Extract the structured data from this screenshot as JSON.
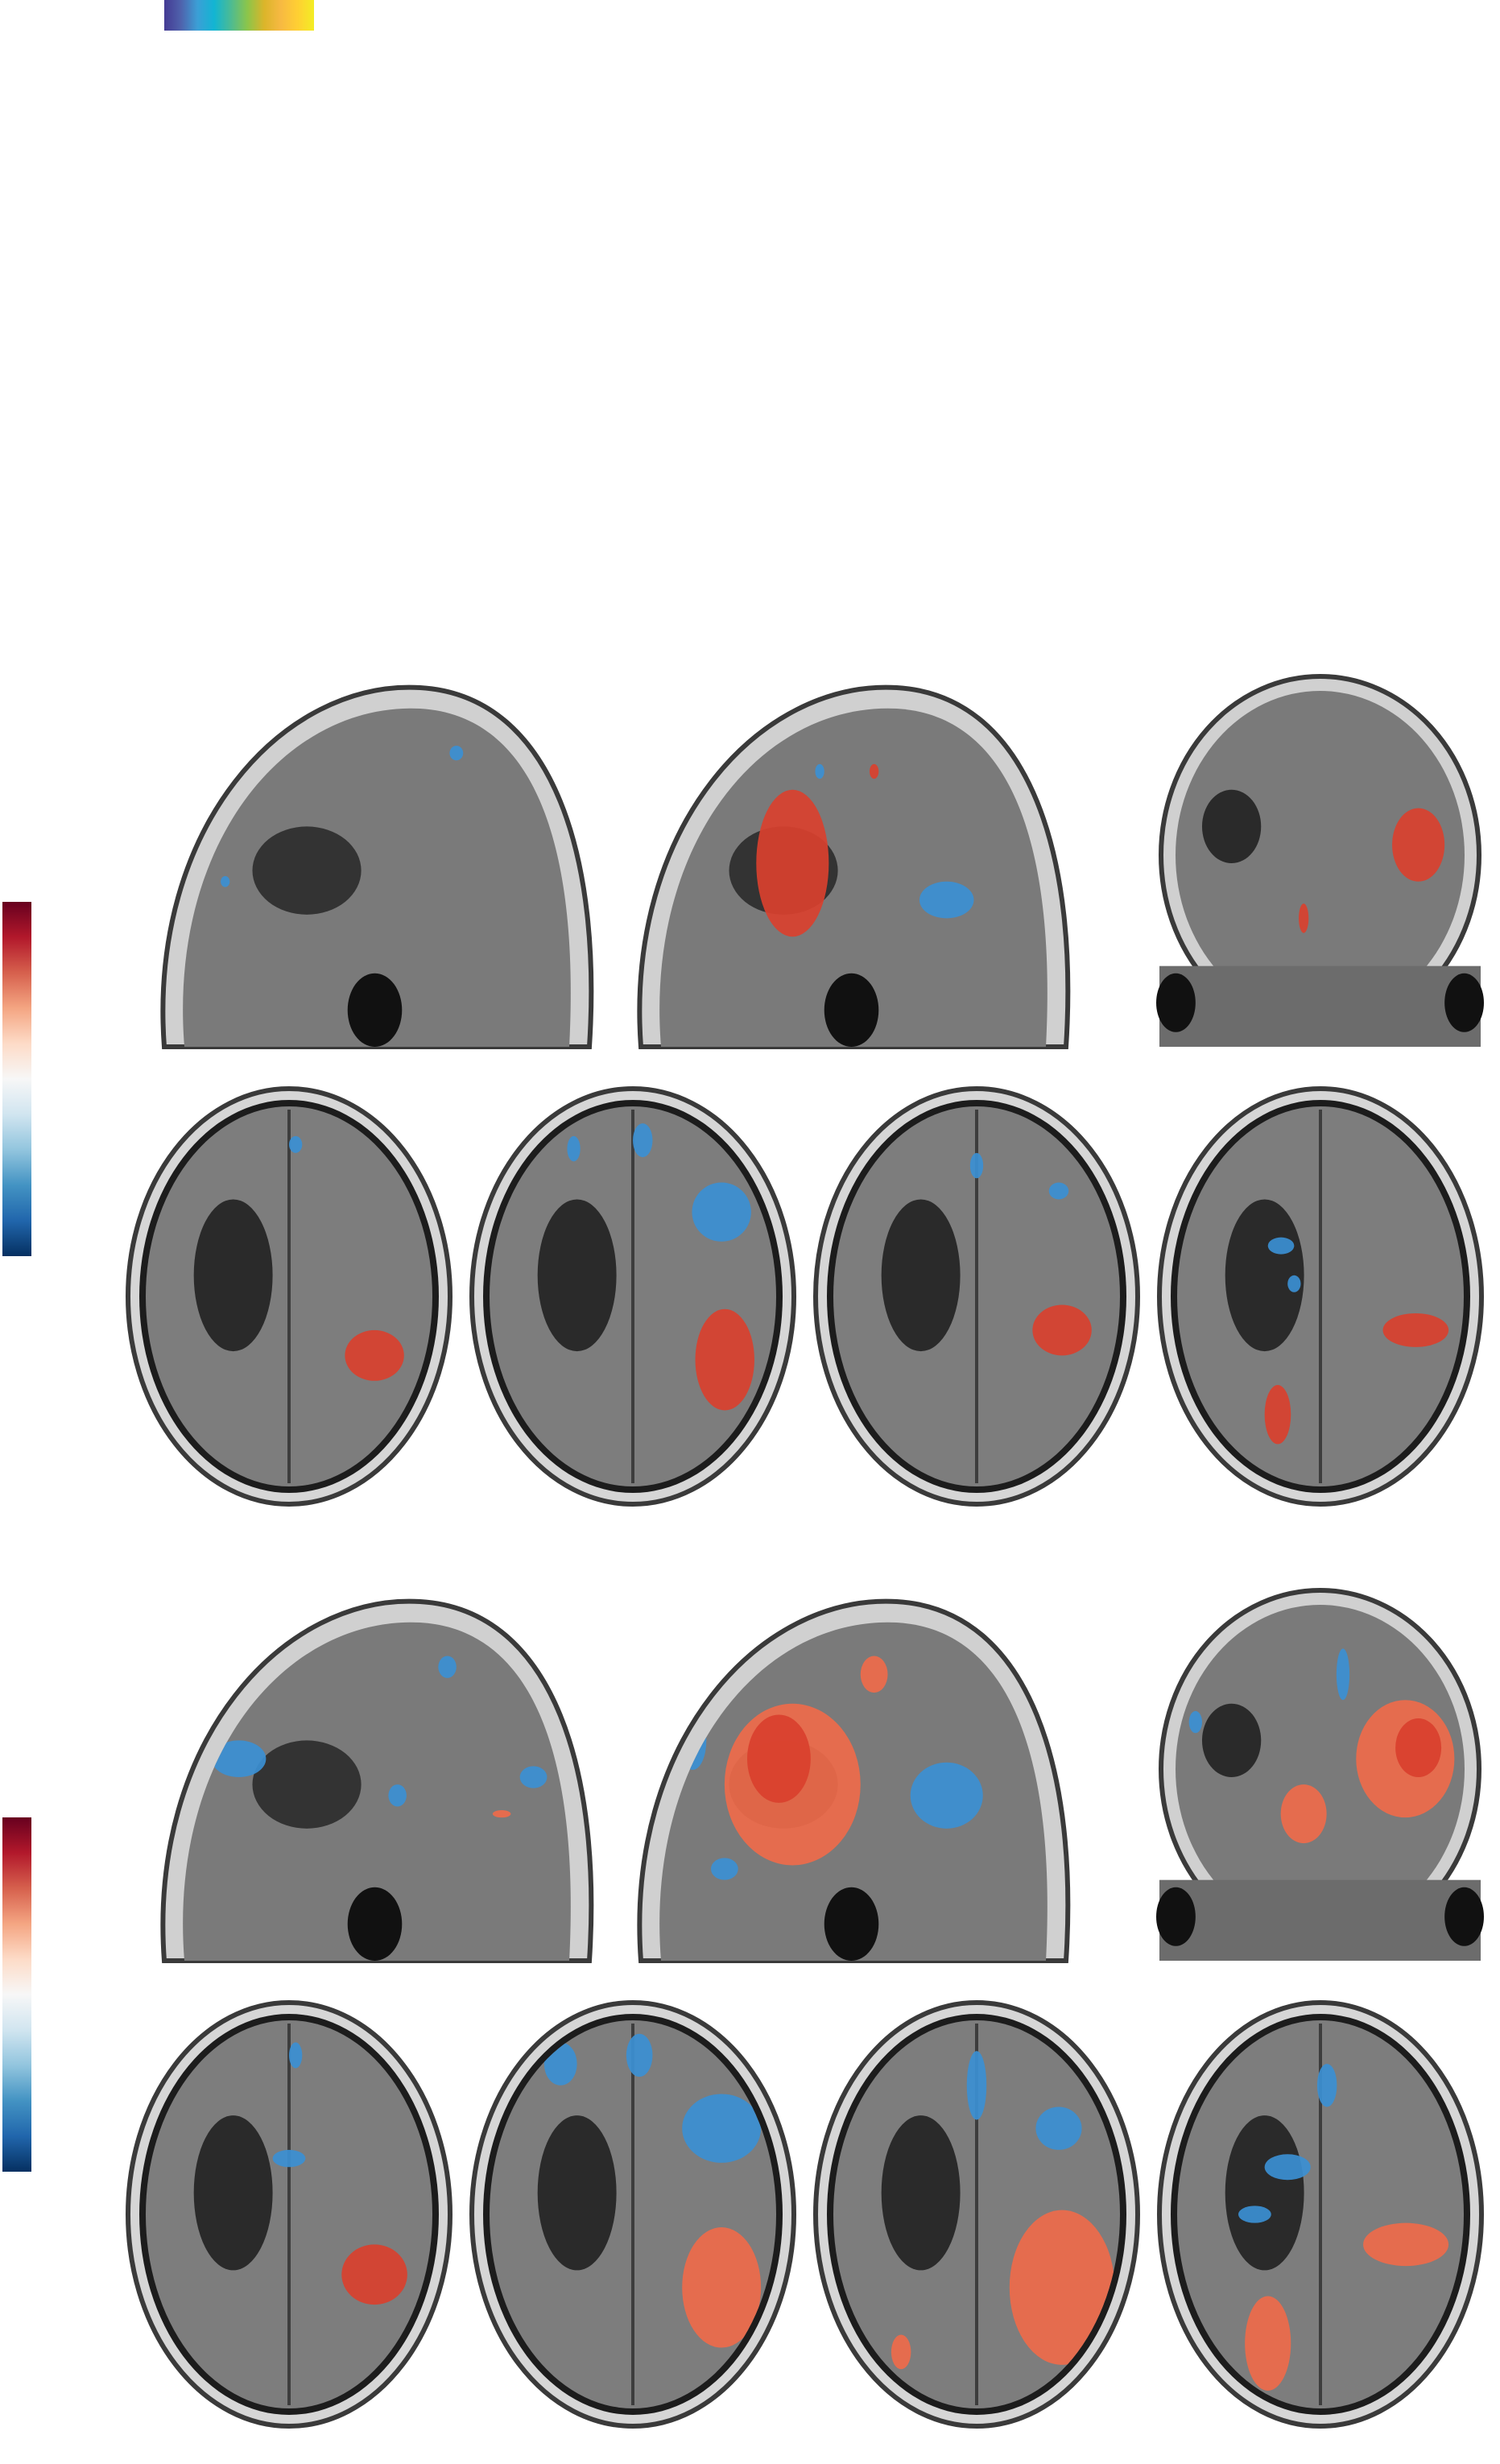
{
  "colors": {
    "sequential_colorbar": [
      "#443a93",
      "#4f62ac",
      "#3b9fd6",
      "#12b5d3",
      "#4cbb93",
      "#8cc54a",
      "#dbb52a",
      "#f7b942",
      "#ffcf33",
      "#f3ed24"
    ],
    "diverging_colorbar": [
      "#67001f",
      "#b2182b",
      "#d6604d",
      "#f4a582",
      "#fddbc7",
      "#f7f7f7",
      "#d1e5f0",
      "#92c5de",
      "#4393c3",
      "#2166ac",
      "#053061"
    ],
    "positive_overlay": "#d9402e",
    "positive_overlay_light": "#ee6a4a",
    "negative_overlay": "#3b8fd2"
  },
  "panel_groups": [
    {
      "views": [
        "sagittal",
        "sagittal",
        "coronal",
        "axial",
        "axial",
        "axial",
        "axial"
      ]
    },
    {
      "views": [
        "sagittal",
        "sagittal",
        "coronal",
        "axial",
        "axial",
        "axial",
        "axial"
      ]
    }
  ]
}
